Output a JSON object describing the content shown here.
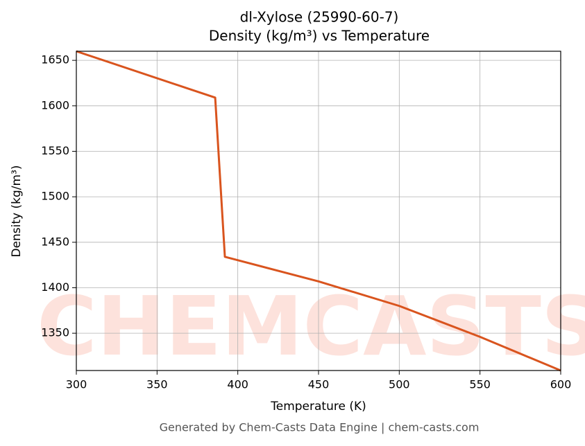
{
  "chart_data": {
    "type": "line",
    "title": "dl-Xylose (25990-60-7)",
    "subtitle": "Density (kg/m³) vs Temperature",
    "x_label": "Temperature (K)",
    "y_label": "Density (kg/m³)",
    "footer": "Generated by Chem-Casts Data Engine | chem-casts.com",
    "watermark": "CHEMCASTS",
    "x": [
      300,
      386,
      392,
      450,
      500,
      550,
      600
    ],
    "series": [
      {
        "name": "Density",
        "color": "#d9541e",
        "values": [
          1660,
          1609,
          1434,
          1407,
          1380,
          1346,
          1309
        ]
      }
    ],
    "xlim": [
      300,
      600
    ],
    "xticks": [
      300,
      350,
      400,
      450,
      500,
      550,
      600
    ],
    "ylim": [
      1309,
      1660
    ],
    "yticks": [
      1350,
      1400,
      1450,
      1500,
      1550,
      1600,
      1650
    ],
    "grid": true
  }
}
